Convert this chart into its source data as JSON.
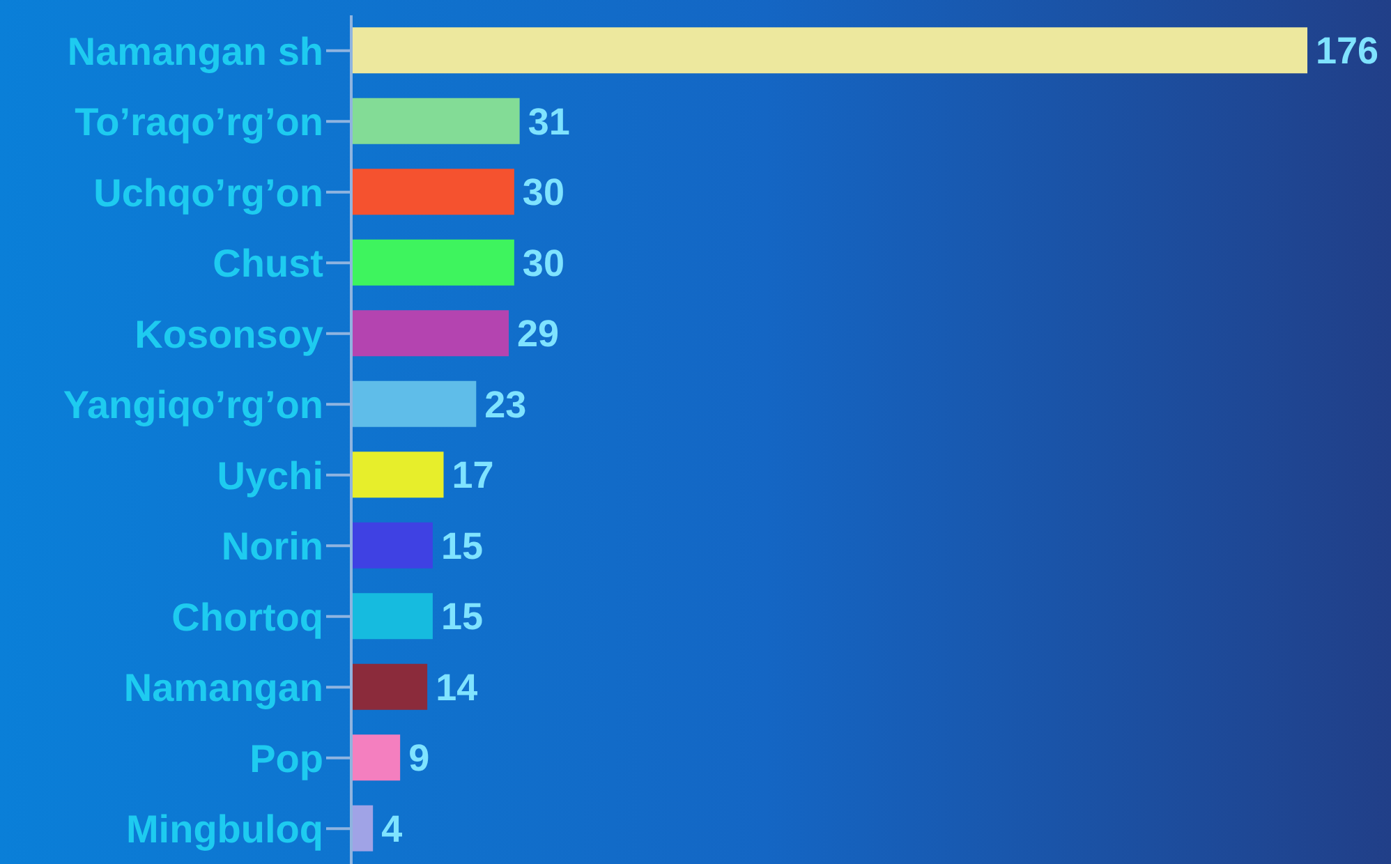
{
  "chart_data": {
    "type": "bar",
    "orientation": "horizontal",
    "data_labels": true,
    "categories": [
      "Namangan sh",
      "To’raqo’rg’on",
      "Uchqo’rg’on",
      "Chust",
      "Kosonsoy",
      "Yangiqo’rg’on",
      "Uychi",
      "Norin",
      "Chortoq",
      "Namangan",
      "Pop",
      "Mingbuloq"
    ],
    "values": [
      176,
      31,
      30,
      30,
      29,
      23,
      17,
      15,
      15,
      14,
      9,
      4
    ],
    "colors": [
      "#ede89e",
      "#83dc96",
      "#f5522f",
      "#3ef45e",
      "#b444b0",
      "#5fbde9",
      "#e7ee2b",
      "#3f41e3",
      "#16bbdf",
      "#8b2b3b",
      "#f47fbf",
      "#a0a3e6"
    ]
  }
}
